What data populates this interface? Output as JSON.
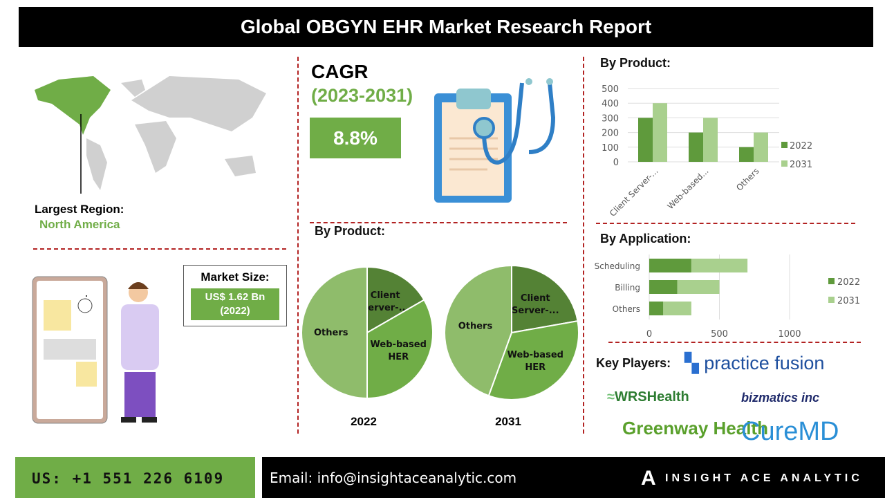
{
  "header": {
    "title": "Global OBGYN EHR Market Research Report"
  },
  "region": {
    "label": "Largest Region:",
    "value": "North America"
  },
  "market_size": {
    "label": "Market Size:",
    "value": "US$ 1.62 Bn",
    "year": "(2022)"
  },
  "cagr": {
    "label": "CAGR",
    "period": "(2023-2031)",
    "value": "8.8%"
  },
  "pie_section": {
    "title": "By Product:"
  },
  "product_section": {
    "title": "By Product:"
  },
  "application_section": {
    "title": "By Application:"
  },
  "key_players": {
    "title": "Key Players:",
    "logos": [
      "practice fusion",
      "WRSHealth",
      "bizmatics inc",
      "Greenway Health",
      "CureMD"
    ]
  },
  "colors": {
    "dark_green": "#548235",
    "mid_green": "#70ad47",
    "light_green": "#a9d08e",
    "pie_light": "#8fbc6b",
    "divider": "#b22222"
  },
  "chart_data": [
    {
      "type": "pie",
      "xlabel": "2022",
      "slices": [
        {
          "label": "Client Server-...",
          "value": 16.7
        },
        {
          "label": "Web-based HER",
          "value": 33.3
        },
        {
          "label": "Others",
          "value": 50.0
        }
      ]
    },
    {
      "type": "pie",
      "xlabel": "2031",
      "slices": [
        {
          "label": "Client Server-...",
          "value": 22.2
        },
        {
          "label": "Web-based HER",
          "value": 33.3
        },
        {
          "label": "Others",
          "value": 44.4
        }
      ]
    },
    {
      "type": "bar",
      "categories": [
        "Client Server-...",
        "Web-based...",
        "Others"
      ],
      "series": [
        {
          "name": "2022",
          "values": [
            300,
            200,
            100
          ]
        },
        {
          "name": "2031",
          "values": [
            400,
            300,
            200
          ]
        }
      ],
      "ylim": [
        0,
        500
      ],
      "yticks": [
        "0",
        "100",
        "200",
        "300",
        "400",
        "500"
      ],
      "grid": true,
      "legend": "right"
    },
    {
      "type": "bar",
      "orientation": "horizontal",
      "stacked": true,
      "categories": [
        "Scheduling",
        "Billing",
        "Others"
      ],
      "series": [
        {
          "name": "2022",
          "values": [
            300,
            200,
            100
          ]
        },
        {
          "name": "2031",
          "values": [
            400,
            300,
            200
          ]
        }
      ],
      "xlim": [
        0,
        1000
      ],
      "xticks": [
        "0",
        "500",
        "1000"
      ],
      "grid": true,
      "legend": "right"
    }
  ],
  "footer": {
    "phone": "US: +1 551 226 6109",
    "email": "Email: info@insightaceanalytic.com",
    "brand": "INSIGHT ACE ANALYTIC"
  }
}
